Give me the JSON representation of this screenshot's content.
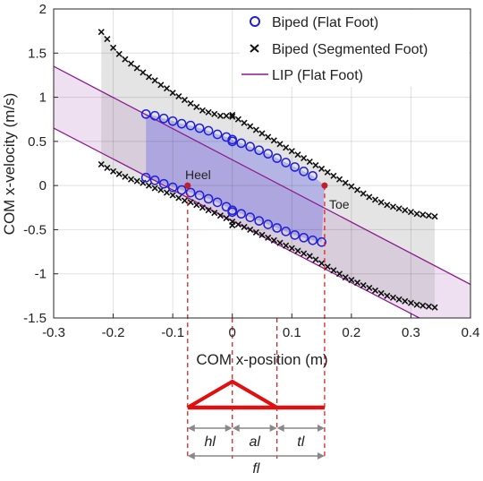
{
  "chart_data": {
    "type": "scatter",
    "xlabel": "COM x-position (m)",
    "ylabel": "COM x-velocity (m/s)",
    "xlim": [
      -0.3,
      0.4
    ],
    "ylim": [
      -1.5,
      2
    ],
    "xticks": [
      "-0.3",
      "-0.2",
      "-0.1",
      "0",
      "0.1",
      "0.2",
      "0.3",
      "0.4"
    ],
    "yticks": [
      "-1.5",
      "-1",
      "-0.5",
      "0",
      "0.5",
      "1",
      "1.5",
      "2"
    ],
    "xtick_values": [
      -0.3,
      -0.2,
      -0.1,
      0,
      0.1,
      0.2,
      0.3,
      0.4
    ],
    "ytick_values": [
      -1.5,
      -1,
      -0.5,
      0,
      0.5,
      1,
      1.5,
      2
    ],
    "grid": true,
    "legend_position": "top-right",
    "legend": [
      {
        "label": "Biped (Flat Foot)",
        "marker": "circle",
        "color": "#1f1fdc"
      },
      {
        "label": "Biped (Segmented Foot)",
        "marker": "x",
        "color": "#111111"
      },
      {
        "label": "LIP (Flat Foot)",
        "marker": "line",
        "color": "#8b1a8f"
      }
    ],
    "series": [
      {
        "name": "Biped (Flat Foot)",
        "marker": "circle",
        "color": "#1f1fdc",
        "upper": {
          "x": [
            -0.145,
            -0.13,
            -0.115,
            -0.1,
            -0.085,
            -0.07,
            -0.055,
            -0.04,
            -0.025,
            -0.01,
            0.0,
            0.015,
            0.03,
            0.045,
            0.06,
            0.075,
            0.09,
            0.105,
            0.12,
            0.135
          ],
          "y": [
            0.81,
            0.79,
            0.76,
            0.73,
            0.7,
            0.68,
            0.65,
            0.62,
            0.58,
            0.55,
            0.52,
            0.48,
            0.44,
            0.4,
            0.36,
            0.31,
            0.26,
            0.21,
            0.16,
            0.11
          ]
        },
        "lower": {
          "x": [
            -0.145,
            -0.13,
            -0.115,
            -0.1,
            -0.085,
            -0.07,
            -0.055,
            -0.04,
            -0.025,
            -0.01,
            0.0,
            0.015,
            0.03,
            0.045,
            0.06,
            0.075,
            0.09,
            0.105,
            0.12,
            0.135,
            0.15
          ],
          "y": [
            0.09,
            0.06,
            0.02,
            -0.02,
            -0.05,
            -0.08,
            -0.11,
            -0.15,
            -0.19,
            -0.24,
            -0.28,
            -0.32,
            -0.36,
            -0.4,
            -0.44,
            -0.48,
            -0.52,
            -0.56,
            -0.59,
            -0.62,
            -0.64
          ]
        },
        "extra": {
          "x": [
            0.0,
            0.0
          ],
          "y": [
            0.5,
            -0.3
          ]
        }
      },
      {
        "name": "Biped (Segmented Foot)",
        "marker": "x",
        "color": "#111111",
        "upper": {
          "x": [
            -0.22,
            -0.21,
            -0.2,
            -0.19,
            -0.18,
            -0.17,
            -0.16,
            -0.15,
            -0.14,
            -0.13,
            -0.12,
            -0.11,
            -0.1,
            -0.09,
            -0.08,
            -0.07,
            -0.06,
            -0.05,
            -0.04,
            -0.03,
            -0.02,
            -0.01,
            0.0,
            0.01,
            0.02,
            0.03,
            0.04,
            0.05,
            0.06,
            0.07,
            0.08,
            0.09,
            0.1,
            0.11,
            0.12,
            0.13,
            0.14,
            0.15,
            0.16,
            0.17,
            0.18,
            0.19,
            0.2,
            0.21,
            0.22,
            0.23,
            0.24,
            0.25,
            0.26,
            0.27,
            0.28,
            0.29,
            0.3,
            0.31,
            0.32,
            0.33,
            0.34
          ],
          "y": [
            1.74,
            1.66,
            1.56,
            1.49,
            1.43,
            1.38,
            1.33,
            1.28,
            1.23,
            1.19,
            1.14,
            1.1,
            1.05,
            1.01,
            0.97,
            0.93,
            0.89,
            0.85,
            0.83,
            0.81,
            0.79,
            0.79,
            0.78,
            0.75,
            0.71,
            0.67,
            0.63,
            0.59,
            0.55,
            0.51,
            0.47,
            0.43,
            0.39,
            0.35,
            0.31,
            0.27,
            0.23,
            0.19,
            0.15,
            0.11,
            0.07,
            0.03,
            -0.01,
            -0.05,
            -0.09,
            -0.13,
            -0.16,
            -0.19,
            -0.22,
            -0.24,
            -0.26,
            -0.28,
            -0.3,
            -0.32,
            -0.33,
            -0.34,
            -0.35
          ]
        },
        "lower": {
          "x": [
            -0.22,
            -0.21,
            -0.2,
            -0.19,
            -0.18,
            -0.17,
            -0.16,
            -0.15,
            -0.14,
            -0.13,
            -0.12,
            -0.11,
            -0.1,
            -0.09,
            -0.08,
            -0.07,
            -0.06,
            -0.05,
            -0.04,
            -0.03,
            -0.02,
            -0.01,
            0.0,
            0.01,
            0.02,
            0.03,
            0.04,
            0.05,
            0.06,
            0.07,
            0.08,
            0.09,
            0.1,
            0.11,
            0.12,
            0.13,
            0.14,
            0.15,
            0.16,
            0.17,
            0.18,
            0.19,
            0.2,
            0.21,
            0.22,
            0.23,
            0.24,
            0.25,
            0.26,
            0.27,
            0.28,
            0.29,
            0.3,
            0.31,
            0.32,
            0.33,
            0.34
          ],
          "y": [
            0.24,
            0.2,
            0.16,
            0.13,
            0.1,
            0.07,
            0.05,
            0.03,
            0.0,
            -0.03,
            -0.05,
            -0.08,
            -0.11,
            -0.14,
            -0.17,
            -0.19,
            -0.22,
            -0.25,
            -0.28,
            -0.31,
            -0.34,
            -0.37,
            -0.41,
            -0.44,
            -0.47,
            -0.5,
            -0.53,
            -0.56,
            -0.59,
            -0.62,
            -0.65,
            -0.68,
            -0.71,
            -0.74,
            -0.77,
            -0.8,
            -0.84,
            -0.88,
            -0.92,
            -0.96,
            -1.0,
            -1.04,
            -1.07,
            -1.1,
            -1.13,
            -1.16,
            -1.19,
            -1.22,
            -1.25,
            -1.27,
            -1.29,
            -1.31,
            -1.33,
            -1.35,
            -1.36,
            -1.37,
            -1.38
          ]
        },
        "extra": {
          "x": [
            0.0,
            0.0
          ],
          "y": [
            0.8,
            -0.45
          ]
        }
      },
      {
        "name": "LIP (Flat Foot)",
        "marker": "line",
        "color": "#8b1a8f",
        "upper": {
          "x": [
            -0.3,
            0.4
          ],
          "y": [
            1.35,
            -1.12
          ]
        },
        "lower": {
          "x": [
            -0.3,
            0.4
          ],
          "y": [
            0.65,
            -1.8
          ]
        }
      }
    ],
    "annotations": [
      {
        "label": "Heel",
        "x": -0.075,
        "y": 0.0
      },
      {
        "label": "Toe",
        "x": 0.155,
        "y": 0.0
      }
    ],
    "foot_diagram": {
      "segment_labels": [
        "hl",
        "al",
        "tl"
      ],
      "total_label": "fl",
      "x": [
        -0.075,
        0.0,
        0.075,
        0.155
      ]
    }
  }
}
